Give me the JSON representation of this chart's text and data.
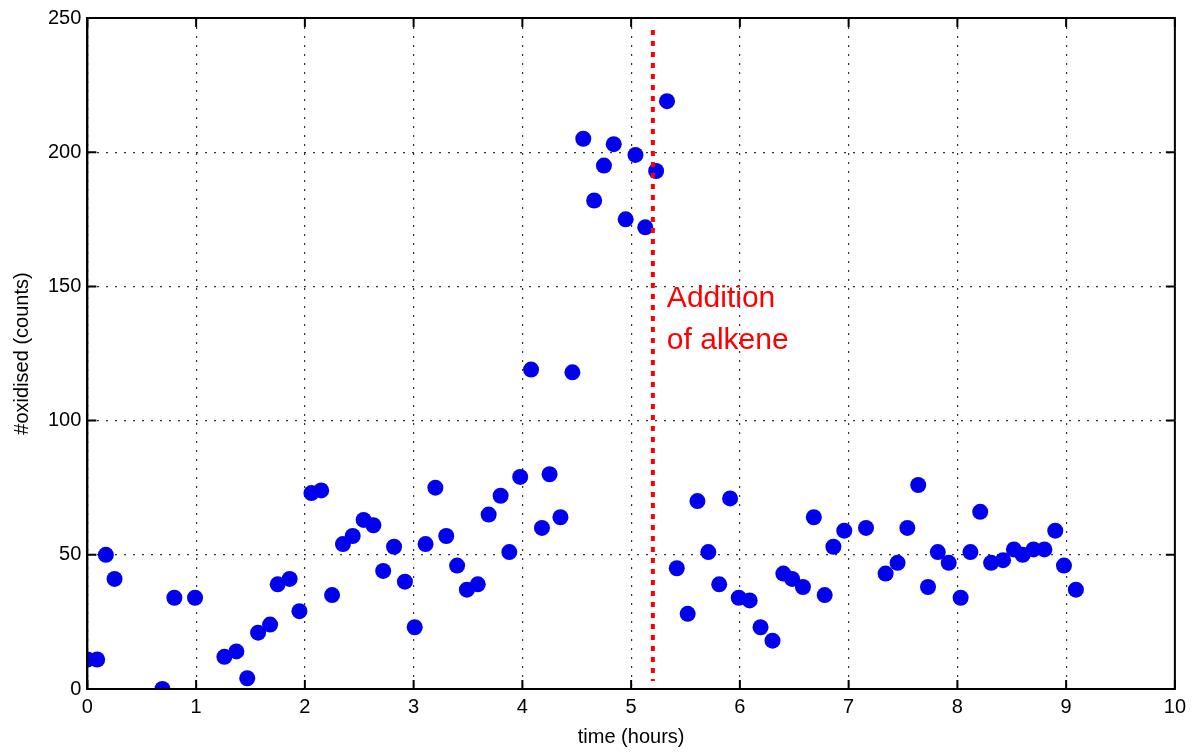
{
  "chart_data": {
    "type": "scatter",
    "xlabel": "time (hours)",
    "ylabel": "#oxidised (counts)",
    "xlim": [
      0,
      10
    ],
    "xticks": [
      0,
      1,
      2,
      3,
      4,
      5,
      6,
      7,
      8,
      9,
      10
    ],
    "ylim": [
      0,
      250
    ],
    "yticks": [
      0,
      50,
      100,
      150,
      200,
      250
    ],
    "grid": true,
    "marker": "circle",
    "legend": false,
    "ref_lines": [
      {
        "axis": "x",
        "value": 5.2,
        "label": "Addition of alkene",
        "color": "#ff0000",
        "line_style": "dotted"
      }
    ],
    "series": [
      {
        "color": "#0000ee",
        "x": [
          0.0,
          0.09,
          0.17,
          0.25,
          0.69,
          0.8,
          0.99,
          1.26,
          1.37,
          1.47,
          1.57,
          1.68,
          1.75,
          1.86,
          1.95,
          2.06,
          2.15,
          2.25,
          2.35,
          2.44,
          2.54,
          2.63,
          2.72,
          2.82,
          2.92,
          3.01,
          3.11,
          3.2,
          3.3,
          3.4,
          3.49,
          3.59,
          3.69,
          3.8,
          3.88,
          3.98,
          4.08,
          4.18,
          4.25,
          4.35,
          4.46,
          4.56,
          4.66,
          4.75,
          4.84,
          4.95,
          5.04,
          5.13,
          5.23,
          5.33,
          5.42,
          5.52,
          5.61,
          5.71,
          5.81,
          5.91,
          5.99,
          6.09,
          6.19,
          6.3,
          6.4,
          6.48,
          6.58,
          6.68,
          6.78,
          6.86,
          6.96,
          7.16,
          7.34,
          7.45,
          7.54,
          7.64,
          7.73,
          7.82,
          7.92,
          8.03,
          8.12,
          8.21,
          8.31,
          8.42,
          8.52,
          8.6,
          8.7,
          8.8,
          8.9,
          8.98,
          9.09
        ],
        "values": [
          11,
          11,
          50,
          41,
          0,
          34,
          34,
          12,
          14,
          4,
          21,
          24,
          39,
          41,
          29,
          73,
          74,
          35,
          54,
          57,
          63,
          61,
          44,
          53,
          40,
          23,
          54,
          75,
          57,
          46,
          37,
          39,
          65,
          72,
          51,
          79,
          119,
          60,
          80,
          64,
          118,
          205,
          182,
          195,
          203,
          175,
          199,
          172,
          193,
          219,
          45,
          28,
          70,
          51,
          39,
          71,
          34,
          33,
          23,
          18,
          43,
          41,
          38,
          64,
          35,
          53,
          59,
          60,
          43,
          47,
          60,
          76,
          38,
          51,
          47,
          34,
          51,
          66,
          47,
          48,
          52,
          50,
          52,
          52,
          59,
          46,
          37
        ]
      }
    ]
  }
}
